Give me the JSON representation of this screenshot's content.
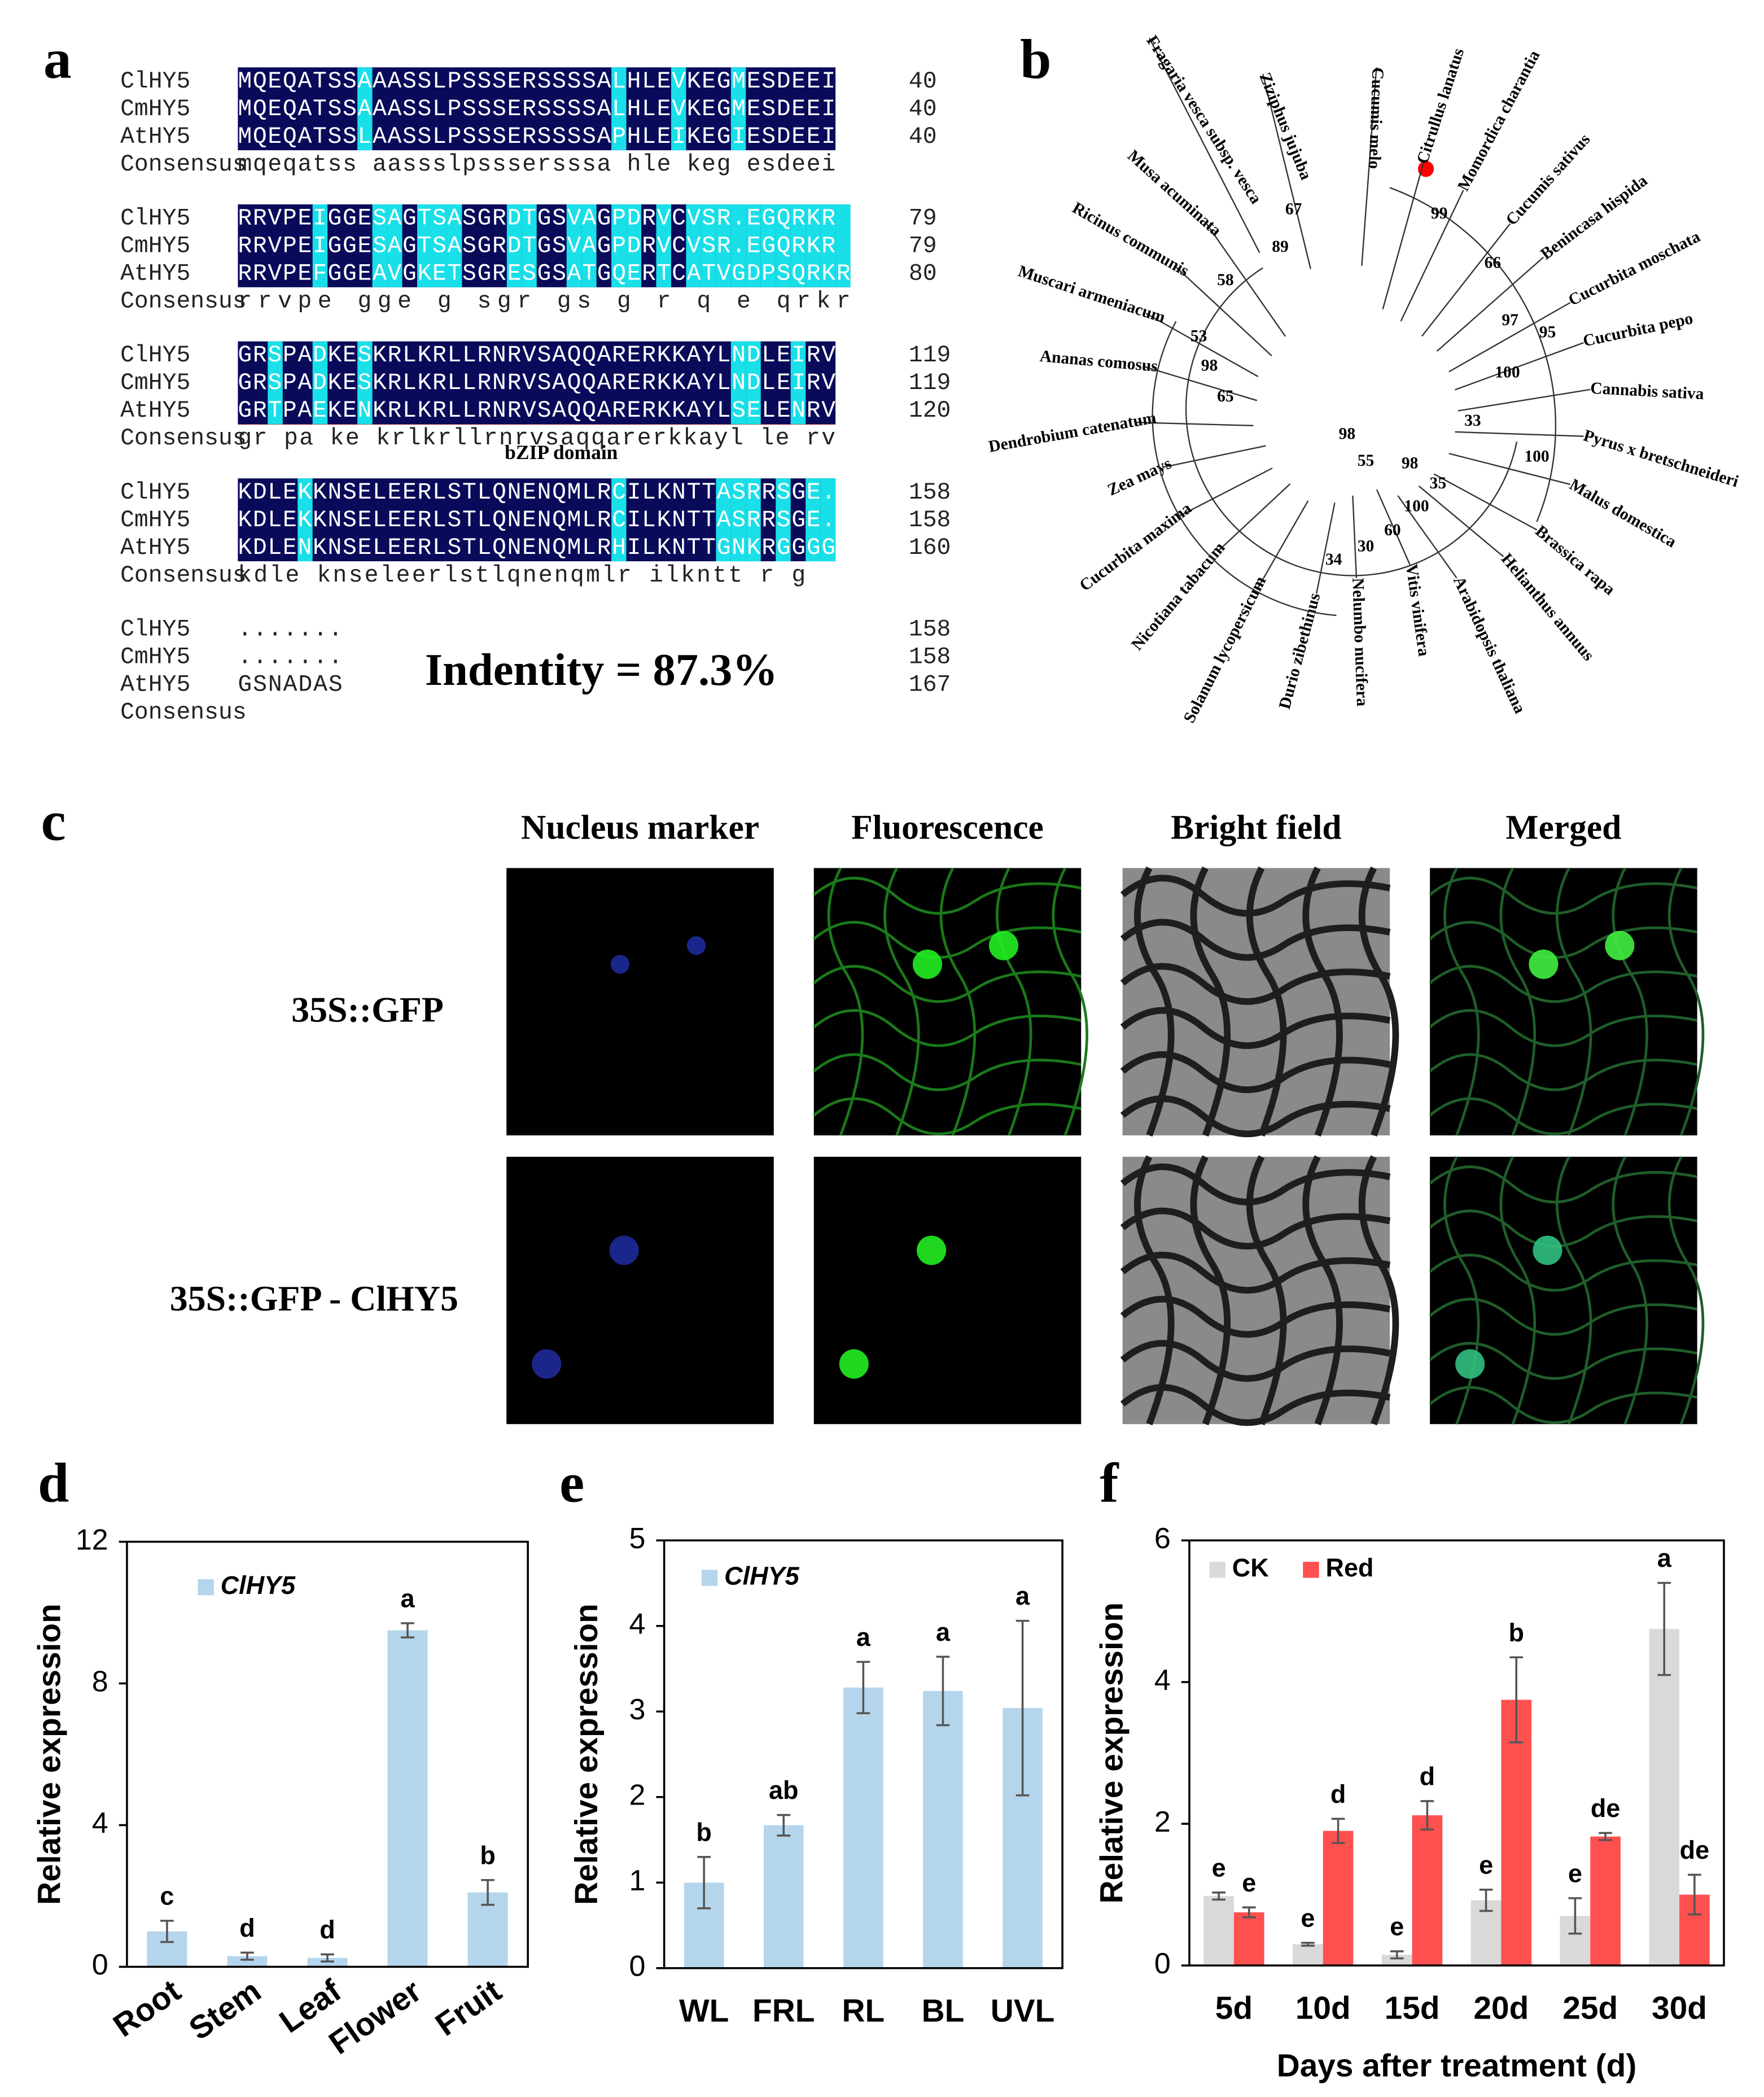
{
  "panel_labels": [
    "a",
    "b",
    "c",
    "d",
    "e",
    "f"
  ],
  "alignment": {
    "blocks": [
      {
        "rows": [
          {
            "name": "ClHY5",
            "seq": "MQEQATSSAAASSLPSSSERSSSSALHLEVKEGMESDEEI",
            "end": 40
          },
          {
            "name": "CmHY5",
            "seq": "MQEQATSSAAASSLPSSSERSSSSALHLEVKEGMESDEEI",
            "end": 40
          },
          {
            "name": "AtHY5",
            "seq": "MQEQATSSLAASSLPSSSERSSSSAPHLEIKEGIESDEEI",
            "end": 40
          },
          {
            "name": "Consensus",
            "seq": "mqeqatss aassslpsssersssa hle keg esdeei"
          }
        ]
      },
      {
        "rows": [
          {
            "name": "ClHY5",
            "seq": "RRVPEIGGESAGTSASGRDTGSVAGPDRVCVSR.EGQRKR",
            "end": 79
          },
          {
            "name": "CmHY5",
            "seq": "RRVPEIGGESAGTSASGRDTGSVAGPDRVCVSR.EGQRKR",
            "end": 79
          },
          {
            "name": "AtHY5",
            "seq": "RRVPEFGGEAVGKETSGRESGSATGQERTCATVGDPSQRKR",
            "end": 80
          },
          {
            "name": "Consensus",
            "seq": "rrvpe gge  g   sgr  gs  g  r q     e qrkr"
          }
        ]
      },
      {
        "rows": [
          {
            "name": "ClHY5",
            "seq": "GRSPADKESKRLKRLLRNRVSAQQARERKKAYLNDLEIRV",
            "end": 119
          },
          {
            "name": "CmHY5",
            "seq": "GRSPADKESKRLKRLLRNRVSAQQARERKKAYLNDLEIRV",
            "end": 119
          },
          {
            "name": "AtHY5",
            "seq": "GRTPAEKENKRLKRLLRNRVSAQQARERKKAYLSELENRV",
            "end": 120
          },
          {
            "name": "Consensus",
            "seq": "gr pa ke krlkrllrnrvsaqqarerkkayl  le rv"
          }
        ]
      },
      {
        "rows": [
          {
            "name": "ClHY5",
            "seq": "KDLEKKNSELEERLSTLQNENQMLRCILKNTTASRRSGE.",
            "end": 158
          },
          {
            "name": "CmHY5",
            "seq": "KDLEKKNSELEERLSTLQNENQMLRCILKNTTASRRSGE.",
            "end": 158
          },
          {
            "name": "AtHY5",
            "seq": "KDLENKNSELEERLSTLQNENQMLRHILKNTTGNKRGGGG",
            "end": 160
          },
          {
            "name": "Consensus",
            "seq": "kdle knseleerlstlqnenqmlr ilkntt   r g"
          }
        ]
      },
      {
        "rows": [
          {
            "name": "ClHY5",
            "seq": ".......",
            "end": 158
          },
          {
            "name": "CmHY5",
            "seq": ".......",
            "end": 158
          },
          {
            "name": "AtHY5",
            "seq": "GSNADAS",
            "end": 167
          },
          {
            "name": "Consensus"
          }
        ]
      }
    ],
    "domain_label": "bZIP domain",
    "identity": "Indentity = 87.3%"
  },
  "tree": {
    "species": [
      "Fragaria vesca subsp. vesca",
      "Ziziphus jujuba",
      "Cucumis melo",
      "Citrullus lanatus",
      "Momordica charantia",
      "Cucumis sativus",
      "Benincasa hispida",
      "Cucurbita moschata",
      "Cucurbita pepo",
      "Cannabis sativa",
      "Pyrus x bretschneideri",
      "Malus domestica",
      "Brassica rapa",
      "Helianthus annuus",
      "Arabidopsis thaliana",
      "Vitis viniferа",
      "Nelumbo nucifera",
      "Durio zibethinus",
      "Solanum lycopersicum",
      "Nicotiana tabacum",
      "Cucurbita maxima",
      "Zea mays",
      "Dendrobium catenatum",
      "Ananas comosus",
      "Muscari armeniacum",
      "Ricinus communis",
      "Musa acuminata"
    ],
    "bootstrap": [
      67,
      89,
      58,
      53,
      98,
      65,
      99,
      66,
      97,
      95,
      100,
      33,
      100,
      98,
      55,
      98,
      35,
      100,
      60,
      30,
      34
    ]
  },
  "microscopy": {
    "columns": [
      "Nucleus marker",
      "Fluorescence",
      "Bright field",
      "Merged"
    ],
    "rows": [
      "35S::GFP",
      "35S::GFP - ClHY5"
    ]
  },
  "chart_data": [
    {
      "type": "bar",
      "ylabel": "Relative expression",
      "categories": [
        "Root",
        "Stem",
        "Leaf",
        "Flower",
        "Fruit"
      ],
      "series": [
        {
          "name": "ClHY5",
          "color": "#b4d5ec",
          "values": [
            1.0,
            0.3,
            0.25,
            9.5,
            2.1
          ],
          "errors": [
            0.3,
            0.1,
            0.1,
            0.2,
            0.35
          ],
          "letters": [
            "c",
            "d",
            "d",
            "a",
            "b"
          ]
        }
      ],
      "ylim": [
        0,
        12
      ],
      "yticks": [
        0,
        4,
        8,
        12
      ]
    },
    {
      "type": "bar",
      "ylabel": "Relative expression",
      "categories": [
        "WL",
        "FRL",
        "RL",
        "BL",
        "UVL"
      ],
      "series": [
        {
          "name": "ClHY5",
          "color": "#b4d5ec",
          "values": [
            1.0,
            1.67,
            3.28,
            3.24,
            3.04
          ],
          "errors": [
            0.3,
            0.12,
            0.3,
            0.4,
            1.02
          ],
          "letters": [
            "b",
            "ab",
            "a",
            "a",
            "a"
          ]
        }
      ],
      "ylim": [
        0,
        5
      ],
      "yticks": [
        0,
        1,
        2,
        3,
        4,
        5
      ]
    },
    {
      "type": "bar",
      "ylabel": "Relative expression",
      "xlabel": "Days after treatment (d)",
      "categories": [
        "5d",
        "10d",
        "15d",
        "20d",
        "25d",
        "30d"
      ],
      "series": [
        {
          "name": "CK",
          "color": "#d9d9d9",
          "values": [
            0.98,
            0.3,
            0.15,
            0.92,
            0.7,
            4.75
          ],
          "errors": [
            0.05,
            0.02,
            0.05,
            0.15,
            0.25,
            0.65
          ],
          "letters": [
            "e",
            "e",
            "e",
            "e",
            "e",
            "a"
          ]
        },
        {
          "name": "Red",
          "color": "#ff5050",
          "values": [
            0.75,
            1.9,
            2.12,
            3.75,
            1.82,
            1.0
          ],
          "errors": [
            0.07,
            0.17,
            0.2,
            0.6,
            0.05,
            0.28
          ],
          "letters": [
            "e",
            "d",
            "d",
            "b",
            "de",
            "de"
          ]
        }
      ],
      "ylim": [
        0,
        6
      ],
      "yticks": [
        0,
        2,
        4,
        6
      ]
    }
  ]
}
